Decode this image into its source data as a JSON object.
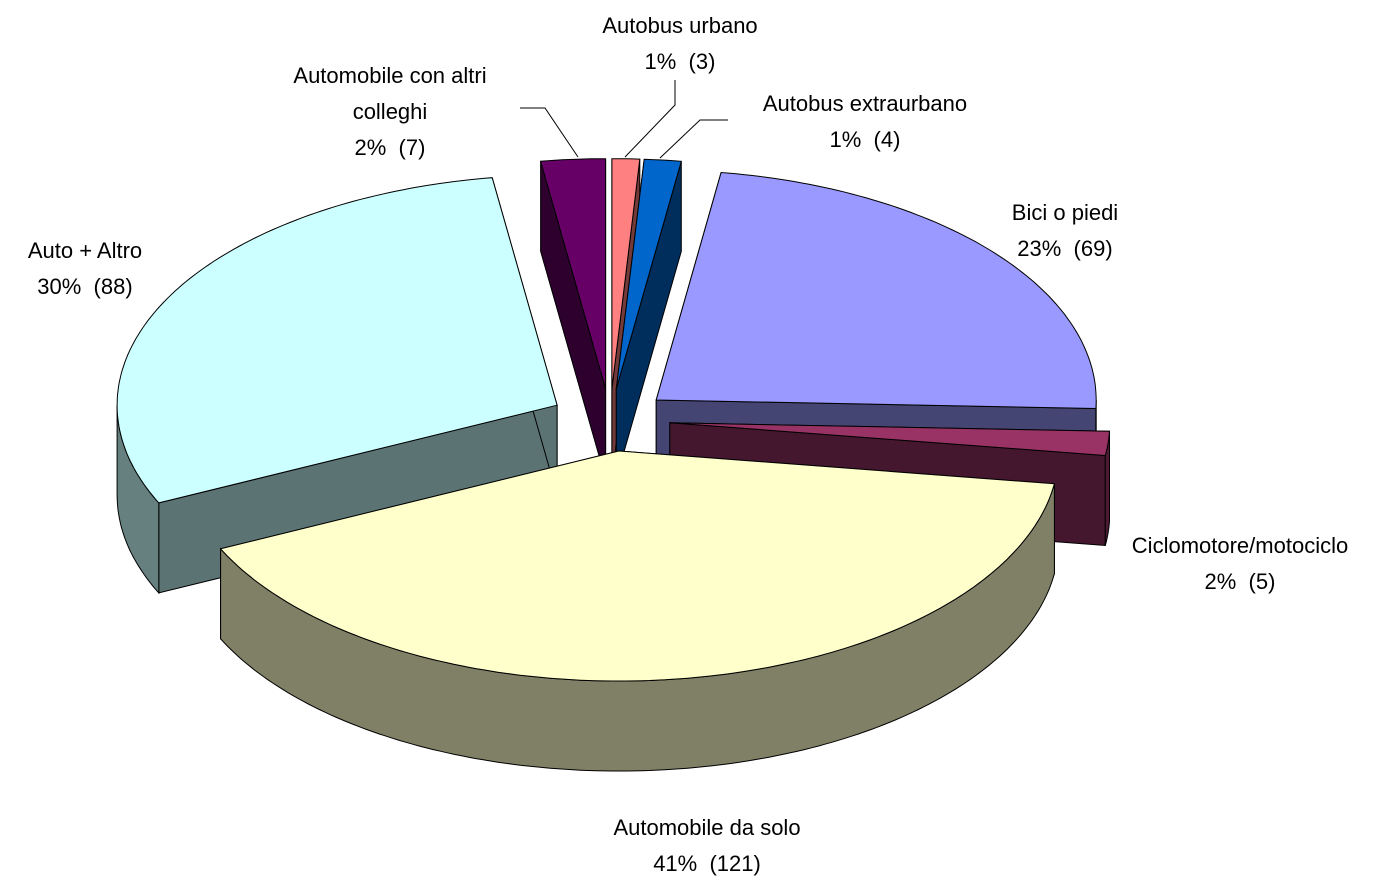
{
  "chart_data": {
    "type": "pie3d",
    "categories": [
      "Autobus urbano",
      "Autobus extraurbano",
      "Bici o piedi",
      "Ciclomotore/motociclo",
      "Automobile da solo",
      "Auto + Altro",
      "Automobile con altri colleghi"
    ],
    "values": [
      3,
      4,
      69,
      5,
      121,
      88,
      7
    ],
    "value_labels": [
      "1%  (3)",
      "1%  (4)",
      "23%  (69)",
      "2%  (5)",
      "41%  (121)",
      "30%  (88)",
      "2%  (7)"
    ],
    "colors": [
      "#ff8080",
      "#0066cc",
      "#9999ff",
      "#993366",
      "#ffffcc",
      "#ccffff",
      "#660066"
    ]
  }
}
